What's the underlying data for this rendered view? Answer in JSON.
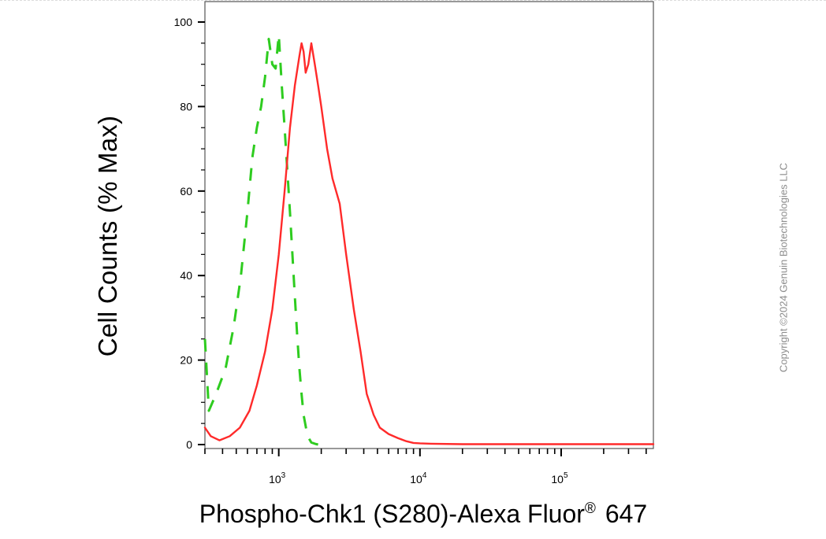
{
  "chart_data": {
    "type": "line",
    "title": "",
    "ylabel": "Cell Counts (% Max)",
    "xlabel_main": "Phospho-Chk1 (S280)-Alexa Fluor",
    "xlabel_mark": "®",
    "xlabel_tail": " 647",
    "x_scale": "log",
    "xlim": [
      300,
      450000
    ],
    "ylim": [
      0,
      100
    ],
    "y_ticks": [
      0,
      20,
      40,
      60,
      80,
      100
    ],
    "x_major_ticks": [
      {
        "value": 1000,
        "base": "10",
        "exp": "3"
      },
      {
        "value": 10000,
        "base": "10",
        "exp": "4"
      },
      {
        "value": 100000,
        "base": "10",
        "exp": "5"
      }
    ],
    "grid": false,
    "series": [
      {
        "color": "#2ecc1f",
        "style": "dashed",
        "x": [
          300,
          320,
          360,
          420,
          480,
          540,
          600,
          650,
          700,
          750,
          800,
          850,
          900,
          950,
          1000,
          1050,
          1100,
          1150,
          1200,
          1250,
          1300,
          1350,
          1400,
          1450,
          1500,
          1600,
          1700,
          1800,
          1900
        ],
        "y": [
          25,
          8,
          12,
          18,
          28,
          40,
          55,
          68,
          75,
          80,
          87,
          96,
          90,
          89,
          97,
          85,
          75,
          65,
          55,
          45,
          35,
          26,
          18,
          12,
          7,
          2,
          0.5,
          0.2,
          0
        ]
      },
      {
        "color": "#ff2a2a",
        "style": "solid",
        "x": [
          300,
          330,
          380,
          450,
          530,
          620,
          700,
          800,
          900,
          1000,
          1100,
          1200,
          1300,
          1400,
          1450,
          1500,
          1550,
          1620,
          1700,
          1800,
          1900,
          2000,
          2200,
          2400,
          2700,
          3000,
          3400,
          3800,
          4200,
          4700,
          5200,
          6000,
          7000,
          8000,
          9000,
          10000,
          12000,
          20000,
          50000,
          100000,
          450000
        ],
        "y": [
          4,
          2,
          1,
          2,
          4,
          8,
          14,
          22,
          32,
          45,
          60,
          75,
          85,
          92,
          95,
          93,
          88,
          90,
          95,
          90,
          85,
          80,
          70,
          63,
          57,
          45,
          32,
          22,
          12,
          7,
          4,
          2.5,
          1.5,
          0.8,
          0.4,
          0.3,
          0.2,
          0.1,
          0.1,
          0.1,
          0.1
        ]
      }
    ]
  },
  "copyright": "Copyright ©2024 Genuin Biotechnologies LLC"
}
